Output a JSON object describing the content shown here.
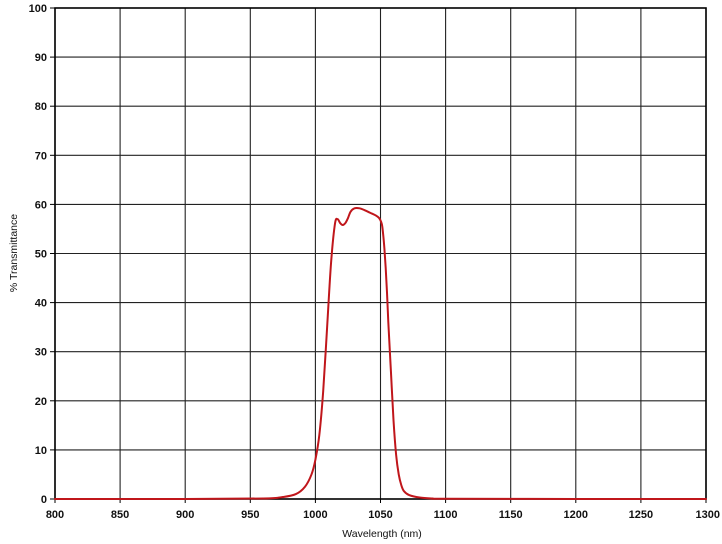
{
  "chart_data": {
    "type": "line",
    "title": "",
    "xlabel": "Wavelength (nm)",
    "ylabel": "% Transmittance",
    "xlim": [
      800,
      1300
    ],
    "ylim": [
      0,
      100
    ],
    "x_ticks": [
      800,
      850,
      900,
      950,
      1000,
      1050,
      1100,
      1150,
      1200,
      1250,
      1300
    ],
    "y_ticks": [
      0,
      10,
      20,
      30,
      40,
      50,
      60,
      70,
      80,
      90,
      100
    ],
    "grid": true,
    "legend": "none",
    "series": [
      {
        "color": "#c0161b",
        "x": [
          800,
          900,
          960,
          975,
          985,
          992,
          997,
          1000,
          1003,
          1006,
          1009,
          1012,
          1015,
          1017,
          1019,
          1021,
          1023,
          1025,
          1027,
          1030,
          1034,
          1038,
          1042,
          1046,
          1049,
          1051,
          1052,
          1053,
          1054,
          1055,
          1056,
          1058,
          1060,
          1062,
          1064,
          1066,
          1068,
          1072,
          1080,
          1090,
          1100,
          1200,
          1300
        ],
        "y": [
          0,
          0,
          0.1,
          0.4,
          1,
          2.5,
          5,
          8,
          13,
          22,
          35,
          48,
          56,
          57,
          56.2,
          55.8,
          56.2,
          57.2,
          58.5,
          59.2,
          59.2,
          58.8,
          58.3,
          57.8,
          57.2,
          56,
          54,
          51,
          47,
          42,
          36,
          26,
          16,
          9,
          5,
          2.8,
          1.6,
          0.8,
          0.3,
          0.1,
          0.05,
          0,
          0
        ]
      }
    ]
  },
  "colors": {
    "grid": "#222222",
    "axis": "#000000",
    "curve": "#c0161b",
    "background": "#ffffff"
  }
}
